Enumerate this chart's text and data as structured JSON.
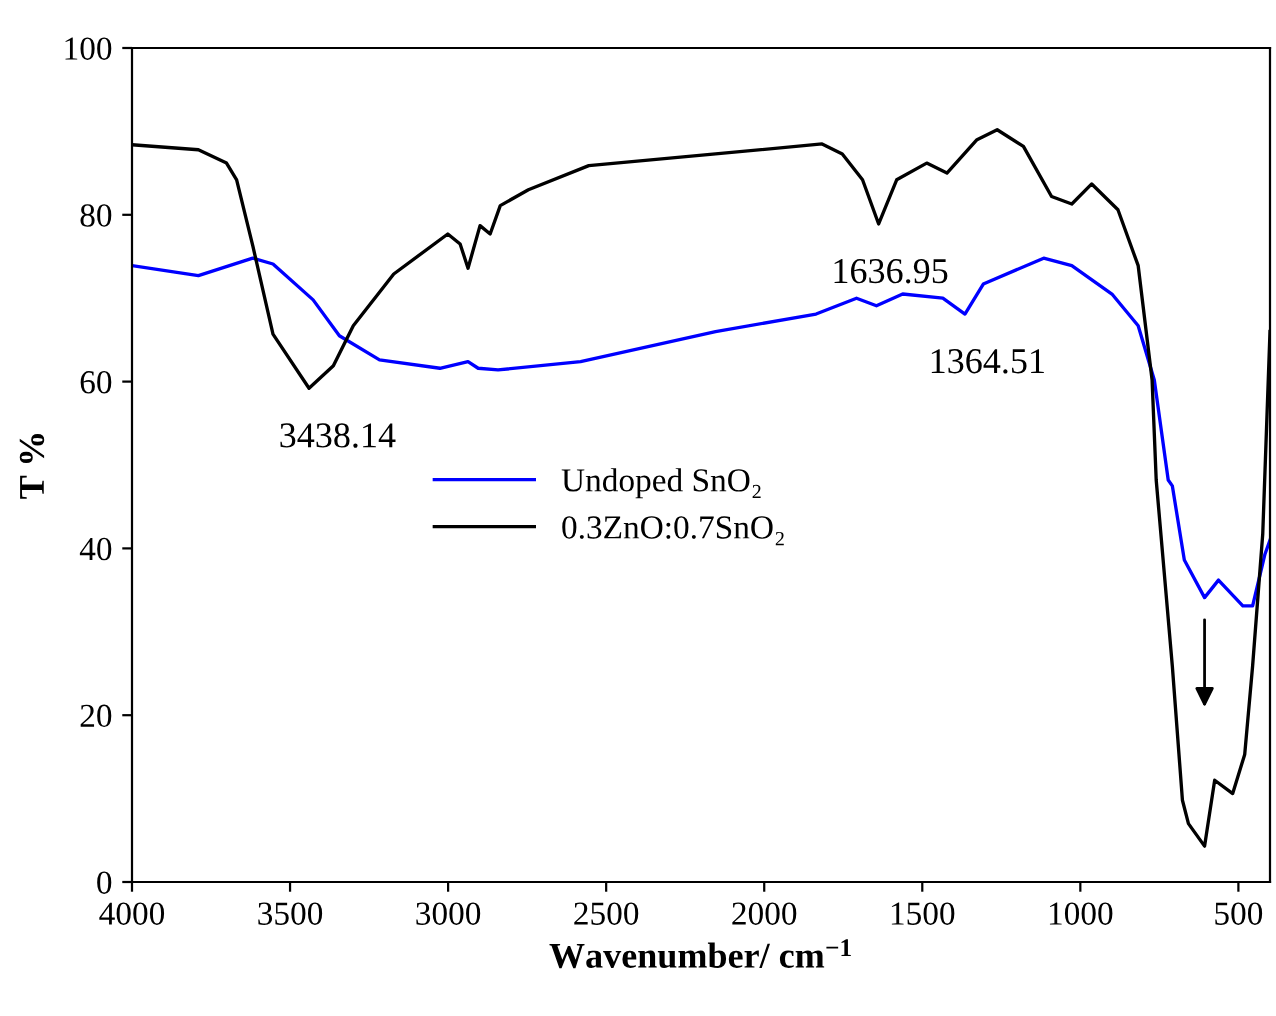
{
  "chart_data": {
    "type": "line",
    "xlabel": "Wavenumber/ cm$^{−1}$",
    "ylabel": "T %",
    "xlim": [
      4000,
      400
    ],
    "xticks": [
      4000,
      3500,
      3000,
      2500,
      2000,
      1500,
      1000,
      500
    ],
    "ylim": [
      0,
      100
    ],
    "yticks": [
      0,
      20,
      40,
      60,
      80,
      100
    ],
    "grid": false,
    "legend": "center",
    "line_style": "solid",
    "marker": "none",
    "series": [
      {
        "name": "Undoped SnO₂",
        "color": "#0000ff",
        "x": [
          4000,
          3790,
          3618,
          3554,
          3427,
          3344,
          3217,
          3026,
          2937,
          2905,
          2842,
          2581,
          2154,
          1836,
          1708,
          1645,
          1562,
          1435,
          1365,
          1307,
          1116,
          1027,
          900,
          817,
          766,
          722,
          709,
          671,
          607,
          563,
          486,
          455,
          416,
          400
        ],
        "values": [
          73.9,
          72.7,
          74.8,
          74.1,
          69.8,
          65.5,
          62.6,
          61.6,
          62.4,
          61.6,
          61.4,
          62.4,
          66,
          68.1,
          70,
          69.1,
          70.5,
          70,
          68.1,
          71.7,
          74.8,
          73.9,
          70.5,
          66.7,
          60.2,
          48.2,
          47.5,
          38.6,
          34.1,
          36.2,
          33.1,
          33.1,
          39.3,
          41
        ]
      },
      {
        "name": "0.3ZnO:0.7SnO₂",
        "color": "#000000",
        "x": [
          4000,
          3790,
          3701,
          3669,
          3618,
          3554,
          3440,
          3363,
          3300,
          3172,
          3001,
          2962,
          2937,
          2899,
          2867,
          2835,
          2746,
          2555,
          2154,
          1817,
          1753,
          1689,
          1638,
          1581,
          1486,
          1422,
          1327,
          1263,
          1180,
          1091,
          1027,
          964,
          881,
          817,
          773,
          760,
          709,
          677,
          658,
          607,
          575,
          518,
          480,
          455,
          423,
          400
        ],
        "values": [
          88.4,
          87.8,
          86.2,
          84.2,
          76.3,
          65.7,
          59.2,
          61.9,
          66.7,
          72.9,
          77.7,
          76.5,
          73.6,
          78.7,
          77.7,
          81.1,
          83,
          85.9,
          87.3,
          88.5,
          87.3,
          84.2,
          78.9,
          84.2,
          86.2,
          85,
          89,
          90.2,
          88.2,
          82.2,
          81.3,
          83.7,
          80.6,
          73.9,
          60.2,
          48.2,
          25.9,
          9.8,
          7,
          4.3,
          12.2,
          10.6,
          15.3,
          25.9,
          41.7,
          66
        ]
      }
    ],
    "annotations": [
      {
        "text": "3438.14",
        "x": 3438.14,
        "y": 59.2
      },
      {
        "text": "1636.95",
        "x": 1636.95,
        "y": 78.9
      },
      {
        "text": "1364.51",
        "x": 1364.51,
        "y": 68.1
      }
    ]
  }
}
